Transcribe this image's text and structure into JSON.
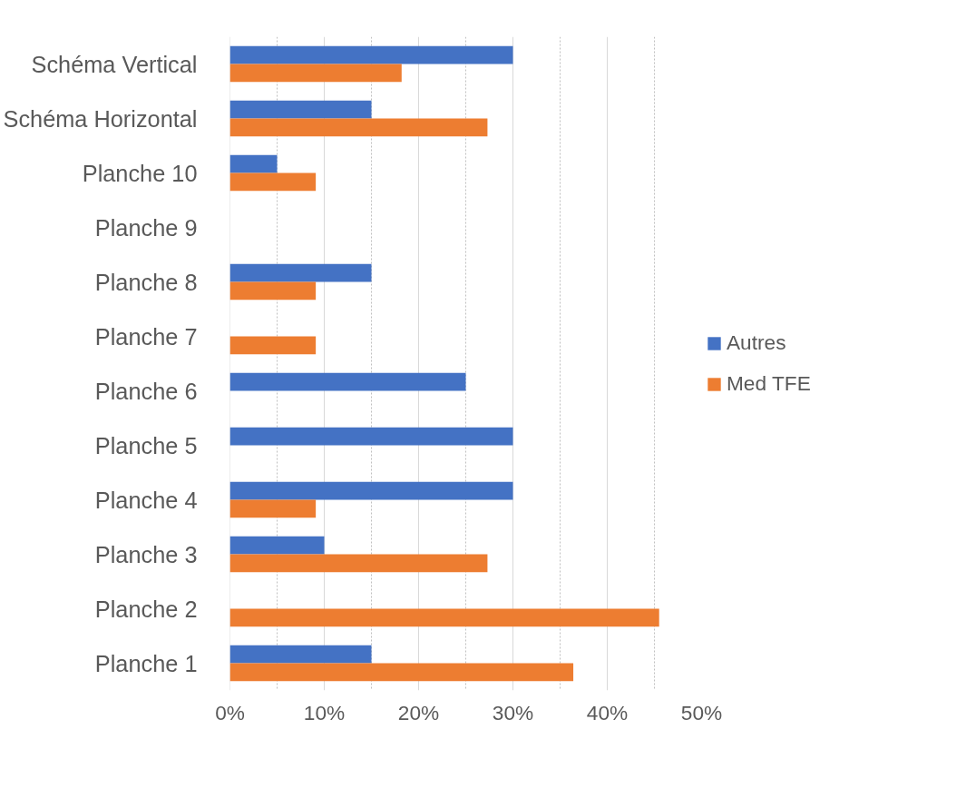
{
  "chart_data": {
    "type": "bar",
    "orientation": "horizontal",
    "categories": [
      "Schéma Vertical",
      "Schéma Horizontal",
      "Planche 10",
      "Planche 9",
      "Planche 8",
      "Planche 7",
      "Planche 6",
      "Planche 5",
      "Planche 4",
      "Planche 3",
      "Planche 2",
      "Planche 1"
    ],
    "series": [
      {
        "name": "Autres",
        "color": "#4472c4",
        "values": [
          30,
          15,
          5,
          null,
          15,
          null,
          25,
          30,
          30,
          10,
          null,
          15
        ]
      },
      {
        "name": "Med TFE",
        "color": "#ed7d31",
        "values": [
          18.2,
          27.3,
          9.1,
          null,
          9.1,
          9.1,
          null,
          null,
          9.1,
          27.3,
          45.5,
          36.4
        ]
      }
    ],
    "xlim": [
      0,
      50
    ],
    "xticks": [
      {
        "value": 0,
        "label": "0%"
      },
      {
        "value": 5,
        "label": null
      },
      {
        "value": 10,
        "label": "10%"
      },
      {
        "value": 15,
        "label": null
      },
      {
        "value": 20,
        "label": "20%"
      },
      {
        "value": 25,
        "label": null
      },
      {
        "value": 30,
        "label": "30%"
      },
      {
        "value": 35,
        "label": null
      },
      {
        "value": 40,
        "label": "40%"
      },
      {
        "value": 45,
        "label": null
      },
      {
        "value": 50,
        "label": "50%"
      }
    ],
    "grid": "x",
    "legend": "right"
  }
}
